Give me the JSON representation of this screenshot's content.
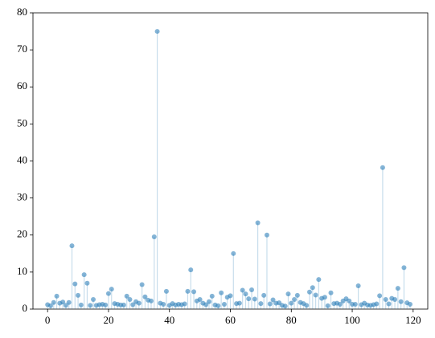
{
  "chart_data": {
    "type": "stem",
    "x": [
      0,
      1,
      2,
      3,
      4,
      5,
      6,
      7,
      8,
      9,
      10,
      11,
      12,
      13,
      14,
      15,
      16,
      17,
      18,
      19,
      20,
      21,
      22,
      23,
      24,
      25,
      26,
      27,
      28,
      29,
      30,
      31,
      32,
      33,
      34,
      35,
      36,
      37,
      38,
      39,
      40,
      41,
      42,
      43,
      44,
      45,
      46,
      47,
      48,
      49,
      50,
      51,
      52,
      53,
      54,
      55,
      56,
      57,
      58,
      59,
      60,
      61,
      62,
      63,
      64,
      65,
      66,
      67,
      68,
      69,
      70,
      71,
      72,
      73,
      74,
      75,
      76,
      77,
      78,
      79,
      80,
      81,
      82,
      83,
      84,
      85,
      86,
      87,
      88,
      89,
      90,
      91,
      92,
      93,
      94,
      95,
      96,
      97,
      98,
      99,
      100,
      101,
      102,
      103,
      104,
      105,
      106,
      107,
      108,
      109,
      110,
      111,
      112,
      113,
      114,
      115,
      116,
      117,
      118,
      119
    ],
    "values": [
      1.2,
      0.9,
      1.8,
      3.5,
      1.6,
      1.9,
      1.0,
      1.8,
      17.1,
      6.8,
      3.7,
      1.1,
      9.3,
      7.0,
      1.0,
      2.6,
      1.0,
      1.2,
      1.3,
      1.1,
      4.2,
      5.4,
      1.5,
      1.3,
      1.1,
      1.1,
      3.5,
      2.6,
      1.2,
      2.0,
      1.6,
      6.6,
      3.3,
      2.4,
      2.2,
      19.5,
      75.0,
      1.6,
      1.3,
      4.8,
      1.0,
      1.5,
      1.1,
      1.3,
      1.2,
      1.4,
      4.8,
      10.6,
      4.7,
      2.2,
      2.6,
      1.6,
      1.2,
      2.0,
      3.5,
      1.1,
      0.9,
      4.4,
      1.3,
      3.2,
      3.6,
      15.0,
      1.5,
      1.6,
      5.1,
      4.1,
      2.8,
      5.2,
      2.7,
      23.3,
      1.5,
      3.7,
      20.0,
      1.4,
      2.5,
      1.6,
      1.7,
      1.0,
      0.8,
      4.1,
      1.6,
      2.6,
      3.7,
      1.8,
      1.5,
      1.0,
      4.6,
      5.8,
      3.8,
      8.0,
      2.9,
      3.2,
      0.9,
      4.4,
      1.5,
      1.6,
      1.3,
      2.2,
      2.8,
      2.2,
      1.3,
      1.3,
      6.3,
      1.2,
      1.6,
      1.1,
      1.0,
      1.2,
      1.4,
      3.6,
      38.2,
      2.6,
      1.4,
      2.9,
      2.6,
      5.6,
      2.0,
      11.2,
      1.7,
      1.3
    ],
    "color": "#1f77b4",
    "xlim": [
      -4.8,
      124.8
    ],
    "xticks": [
      0,
      20,
      40,
      60,
      80,
      100,
      120
    ],
    "ylim": [
      0,
      80
    ],
    "yticks": [
      0,
      10,
      20,
      30,
      40,
      50,
      60,
      70,
      80
    ]
  }
}
